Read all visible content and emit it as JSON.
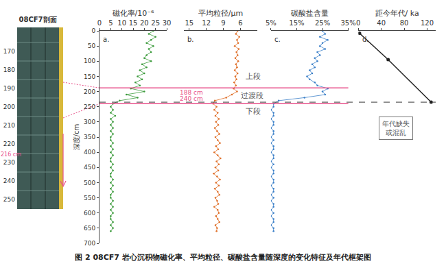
{
  "chart_data": [
    {
      "type": "line",
      "panel_label": "a.",
      "x_label": "磁化率/10⁻⁶",
      "color": "#3a9a3a",
      "marker": "dot",
      "xlim": [
        0,
        30
      ],
      "xticks": [
        0,
        5,
        10,
        15,
        20,
        25,
        30
      ],
      "y_label": "深度/cm",
      "ylim": [
        700,
        0
      ],
      "yticks": [
        0,
        50,
        100,
        150,
        200,
        250,
        300,
        350,
        400,
        450,
        500,
        550,
        600,
        650,
        700
      ],
      "depth": [
        0,
        10,
        20,
        30,
        40,
        50,
        60,
        70,
        80,
        90,
        100,
        110,
        120,
        130,
        140,
        150,
        160,
        170,
        180,
        190,
        200,
        210,
        220,
        230,
        240,
        250,
        260,
        270,
        280,
        290,
        300,
        310,
        320,
        330,
        340,
        350,
        360,
        370,
        380,
        390,
        400,
        410,
        420,
        430,
        440,
        450,
        460,
        470,
        480,
        490,
        500,
        510,
        520,
        530,
        540,
        550,
        560,
        570,
        580,
        590,
        600,
        610,
        620,
        630,
        640,
        650,
        660
      ],
      "values": [
        24,
        22,
        25,
        23,
        21,
        24,
        22,
        23,
        21,
        20,
        23,
        19,
        21,
        18,
        20,
        17,
        19,
        16,
        18,
        14,
        20,
        12,
        17,
        9,
        6,
        5,
        6,
        5,
        7,
        5,
        6,
        5,
        6,
        5,
        6,
        5,
        5,
        6,
        5,
        6,
        5,
        6,
        5,
        5,
        6,
        5,
        6,
        5,
        5,
        6,
        5,
        6,
        5,
        6,
        5,
        5,
        6,
        5,
        6,
        5,
        6,
        5,
        5,
        6,
        5,
        6,
        5
      ]
    },
    {
      "type": "line",
      "panel_label": "b.",
      "x_label": "平均粒径/μm",
      "color": "#e0702a",
      "marker": "dot",
      "xlim": [
        16,
        3
      ],
      "xticks": [
        15,
        12,
        9,
        6
      ],
      "depth": [
        0,
        10,
        20,
        30,
        40,
        50,
        60,
        70,
        80,
        90,
        100,
        110,
        120,
        130,
        140,
        150,
        160,
        170,
        180,
        190,
        200,
        210,
        220,
        230,
        240,
        250,
        260,
        270,
        280,
        290,
        300,
        310,
        320,
        330,
        340,
        350,
        360,
        370,
        380,
        390,
        400,
        410,
        420,
        430,
        440,
        450,
        460,
        470,
        480,
        490,
        500,
        510,
        520,
        530,
        540,
        550,
        560,
        570,
        580,
        590,
        600,
        610,
        620,
        630,
        640,
        650,
        660
      ],
      "values": [
        6.5,
        6.8,
        6.2,
        6.6,
        6.4,
        7.0,
        6.3,
        6.7,
        6.5,
        6.9,
        6.4,
        6.8,
        6.6,
        7.0,
        6.5,
        6.9,
        6.7,
        7.1,
        6.8,
        7.2,
        6.6,
        7.5,
        8.5,
        10.5,
        10.8,
        10.2,
        10.6,
        10.0,
        10.4,
        9.8,
        10.3,
        9.9,
        10.5,
        10.1,
        9.7,
        10.4,
        10.0,
        9.6,
        10.3,
        9.9,
        10.6,
        10.0,
        9.5,
        10.2,
        9.8,
        10.4,
        9.9,
        10.7,
        10.1,
        9.6,
        10.3,
        9.8,
        10.5,
        10.0,
        9.7,
        10.4,
        10.1,
        9.9,
        10.6,
        10.0,
        9.8,
        10.3,
        10.0,
        9.7,
        10.4,
        10.1,
        10.2
      ]
    },
    {
      "type": "line",
      "panel_label": "c.",
      "x_label": "碳酸盐含量",
      "color": "#3a7fc8",
      "marker": "dot",
      "xlim": [
        5,
        35
      ],
      "xticks": [
        {
          "value": 5,
          "label": "5%"
        },
        {
          "value": 15,
          "label": "15%"
        },
        {
          "value": 25,
          "label": "25%"
        },
        {
          "value": 35,
          "label": "35%"
        }
      ],
      "depth": [
        0,
        10,
        20,
        30,
        40,
        50,
        60,
        70,
        80,
        90,
        100,
        110,
        120,
        130,
        140,
        150,
        160,
        170,
        180,
        190,
        200,
        210,
        220,
        230,
        240,
        250,
        260,
        270,
        280,
        290,
        300,
        310,
        320,
        330,
        340,
        350,
        360,
        370,
        380,
        390,
        400,
        410,
        420,
        430,
        440,
        450,
        460,
        470,
        480,
        490,
        500,
        510,
        520,
        530,
        540,
        550,
        560,
        570,
        580,
        590,
        600,
        610,
        620,
        630,
        640,
        650,
        660
      ],
      "values": [
        25,
        26,
        24,
        27,
        25,
        24,
        26,
        23,
        24,
        22,
        23,
        21,
        22,
        20,
        21,
        19,
        20,
        22,
        23,
        27,
        25,
        26,
        18,
        8,
        6,
        6,
        5,
        6,
        6,
        5,
        6,
        6,
        5,
        6,
        6,
        5,
        6,
        5,
        6,
        6,
        5,
        6,
        6,
        5,
        6,
        5,
        6,
        6,
        5,
        6,
        6,
        5,
        6,
        6,
        5,
        6,
        5,
        6,
        6,
        5,
        6,
        5,
        6,
        6,
        5,
        6,
        6
      ]
    },
    {
      "type": "line",
      "panel_label": "d.",
      "x_label": "距今年代/ ka",
      "color": "#222222",
      "marker": "circle",
      "xlim": [
        0,
        135
      ],
      "xticks": [
        0,
        40,
        80,
        120
      ],
      "depth": [
        8,
        95,
        235
      ],
      "values": [
        2,
        52,
        127
      ]
    }
  ],
  "boundaries": [
    {
      "depth": 188,
      "label": "188 cm"
    },
    {
      "depth": 240,
      "label": "240 cm"
    }
  ],
  "age_base_depth": 235,
  "sections": [
    {
      "text": "上段",
      "panel": "b.",
      "x": 3.8,
      "depth": 150
    },
    {
      "text": "过渡段",
      "panel": "b.",
      "x": 4,
      "depth": 214
    },
    {
      "text": "下段",
      "panel": "b.",
      "x": 3.8,
      "depth": 265
    }
  ],
  "age_note": {
    "lines": [
      "年代缺失",
      "或混乱"
    ],
    "panel": "d.",
    "x": 65,
    "depth": 320
  },
  "core_section": {
    "title": "08CF7剖面",
    "depth_labels": [
      170,
      180,
      190,
      200,
      210,
      220,
      230,
      240,
      250
    ],
    "marker_label": "216 cm"
  },
  "caption": "图 2   08CF7 岩心沉积物磁化率、平均粒径、碳酸盐含量随深度的变化特征及年代框架图"
}
